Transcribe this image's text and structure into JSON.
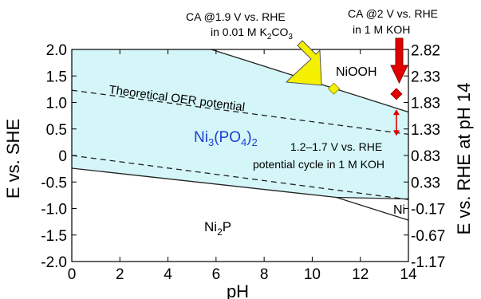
{
  "chart_data": {
    "type": "line",
    "title": "",
    "xlabel": "pH",
    "ylabel": "E vs. SHE",
    "y2label": "E vs. RHE at pH 14",
    "xlim": [
      0,
      14
    ],
    "ylim": [
      -2.0,
      2.0
    ],
    "y2_offset": 0.83,
    "x_ticks": [
      "0",
      "2",
      "4",
      "6",
      "8",
      "10",
      "12",
      "14"
    ],
    "y_ticks": [
      "2.0",
      "1.5",
      "1.0",
      "0.5",
      "0",
      "-0.5",
      "-1.0",
      "-1.5",
      "-2.0"
    ],
    "y2_ticks": [
      "2.82",
      "2.33",
      "1.83",
      "1.33",
      "0.83",
      "0.33",
      "-0.17",
      "-0.67",
      "-1.17"
    ],
    "grid": false,
    "boundaries": [
      {
        "name": "NiOOH upper boundary",
        "style": "solid",
        "points": [
          [
            5.8,
            2.0
          ],
          [
            14,
            0.82
          ]
        ]
      },
      {
        "name": "Ni2P / Ni3(PO4)2 boundary",
        "style": "solid",
        "points": [
          [
            0,
            -0.24
          ],
          [
            11,
            -0.79
          ],
          [
            14,
            -0.82
          ]
        ]
      },
      {
        "name": "Ni boundary",
        "style": "solid",
        "points": [
          [
            11,
            -0.79
          ],
          [
            14,
            -1.22
          ]
        ]
      },
      {
        "name": "OER line",
        "style": "dashed",
        "points": [
          [
            0,
            1.23
          ],
          [
            14,
            0.4
          ]
        ]
      },
      {
        "name": "HER line",
        "style": "dashed",
        "points": [
          [
            0,
            0.0
          ],
          [
            14,
            -0.83
          ]
        ]
      }
    ],
    "shaded_region": {
      "label": "Ni3(PO4)2",
      "color": "#d5f6f8"
    },
    "regions": [
      {
        "label": "NiOOH",
        "x": 12.2,
        "y": 1.45
      },
      {
        "label": "Ni",
        "x": 13.5,
        "y": -1.0
      },
      {
        "label": "Ni2P",
        "x": 7.0,
        "y": -1.45
      }
    ],
    "line_labels": [
      {
        "text": "Theoretical OER potential"
      }
    ],
    "markers": [
      {
        "name": "CA @1.9 V vs. RHE in 0.01 M K2CO3",
        "shape": "diamond",
        "color": "#f4f000",
        "x": 10.9,
        "y": 1.26
      },
      {
        "name": "CA @2 V vs. RHE in 1 M KOH",
        "shape": "diamond",
        "color": "#e00000",
        "x": 13.5,
        "y": 1.16
      }
    ],
    "potential_cycle": {
      "x": 13.5,
      "y_range": [
        0.37,
        0.87
      ],
      "color": "#e00000"
    },
    "annotations": {
      "ca_k2co3_line1": "CA @1.9 V vs. RHE",
      "ca_k2co3_line2": "in 0.01 M K",
      "ca_k2co3_sub1": "2",
      "ca_k2co3_mid": "CO",
      "ca_k2co3_sub2": "3",
      "ca_koh_line1": "CA @2 V vs. RHE",
      "ca_koh_line2": "in 1 M KOH",
      "cycle_line1": "1.2–1.7 V vs. RHE",
      "cycle_line2": "potential cycle in 1 M KOH",
      "nipo_main": "Ni",
      "nipo_sub1": "3",
      "nipo_mid": "(PO",
      "nipo_sub2": "4",
      "nipo_end": ")",
      "nipo_sub3": "2",
      "ni2p_main": "Ni",
      "ni2p_sub": "2",
      "ni2p_end": "P",
      "niooh": "NiOOH",
      "ni": "Ni"
    },
    "colors": {
      "shade": "#d5f6f8",
      "yellow": "#f4f000",
      "red": "#e00000",
      "label_blue": "#1b3fcf"
    }
  }
}
